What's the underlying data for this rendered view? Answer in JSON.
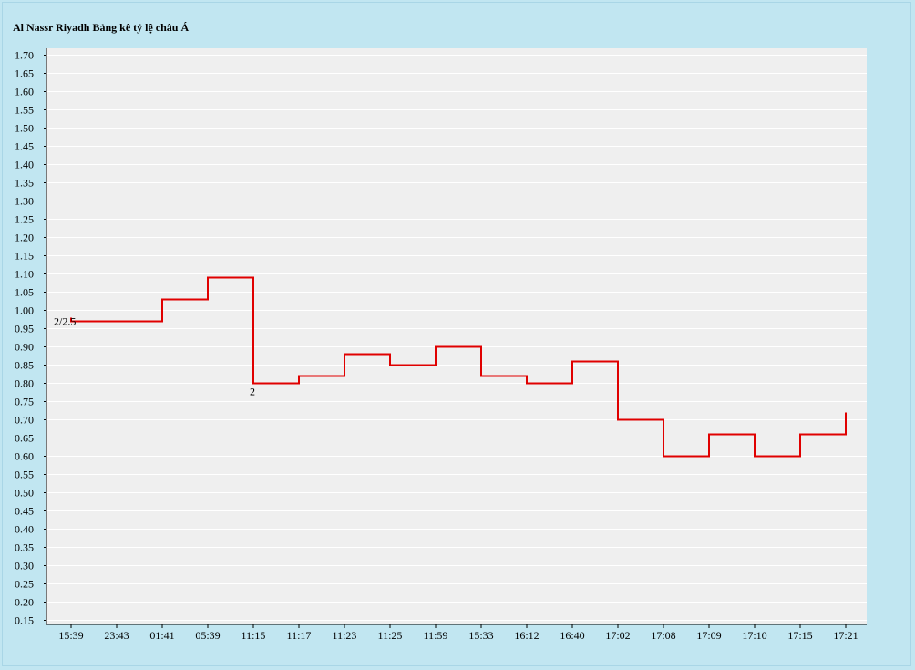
{
  "chart_data": {
    "type": "line",
    "title": "Al Nassr Riyadh Bảng kê tỷ lệ châu Á",
    "xlabel": "",
    "ylabel": "",
    "step": true,
    "grid": true,
    "ylim": [
      0.15,
      1.7
    ],
    "y_ticks": [
      "0.15",
      "0.20",
      "0.25",
      "0.30",
      "0.35",
      "0.40",
      "0.45",
      "0.50",
      "0.55",
      "0.60",
      "0.65",
      "0.70",
      "0.75",
      "0.80",
      "0.85",
      "0.90",
      "0.95",
      "1.00",
      "1.05",
      "1.10",
      "1.15",
      "1.20",
      "1.25",
      "1.30",
      "1.35",
      "1.40",
      "1.45",
      "1.50",
      "1.55",
      "1.60",
      "1.65",
      "1.70"
    ],
    "categories": [
      "15:39",
      "23:43",
      "01:41",
      "05:39",
      "11:15",
      "11:17",
      "11:23",
      "11:25",
      "11:59",
      "15:33",
      "16:12",
      "16:40",
      "17:02",
      "17:08",
      "17:09",
      "17:10",
      "17:15",
      "17:21"
    ],
    "values": [
      0.98,
      0.97,
      1.03,
      1.09,
      0.8,
      0.82,
      0.88,
      0.85,
      0.9,
      0.82,
      0.8,
      0.86,
      0.7,
      0.6,
      0.66,
      0.6,
      0.66,
      0.72
    ],
    "annotations": [
      {
        "index": 0,
        "text": "2/2.5"
      },
      {
        "index": 4,
        "text": "2"
      }
    ],
    "colors": {
      "line": "#e00000",
      "plot_background": "#efefef",
      "page_background": "#c1e6f1",
      "grid": "#ffffff",
      "axis": "#000000"
    }
  }
}
